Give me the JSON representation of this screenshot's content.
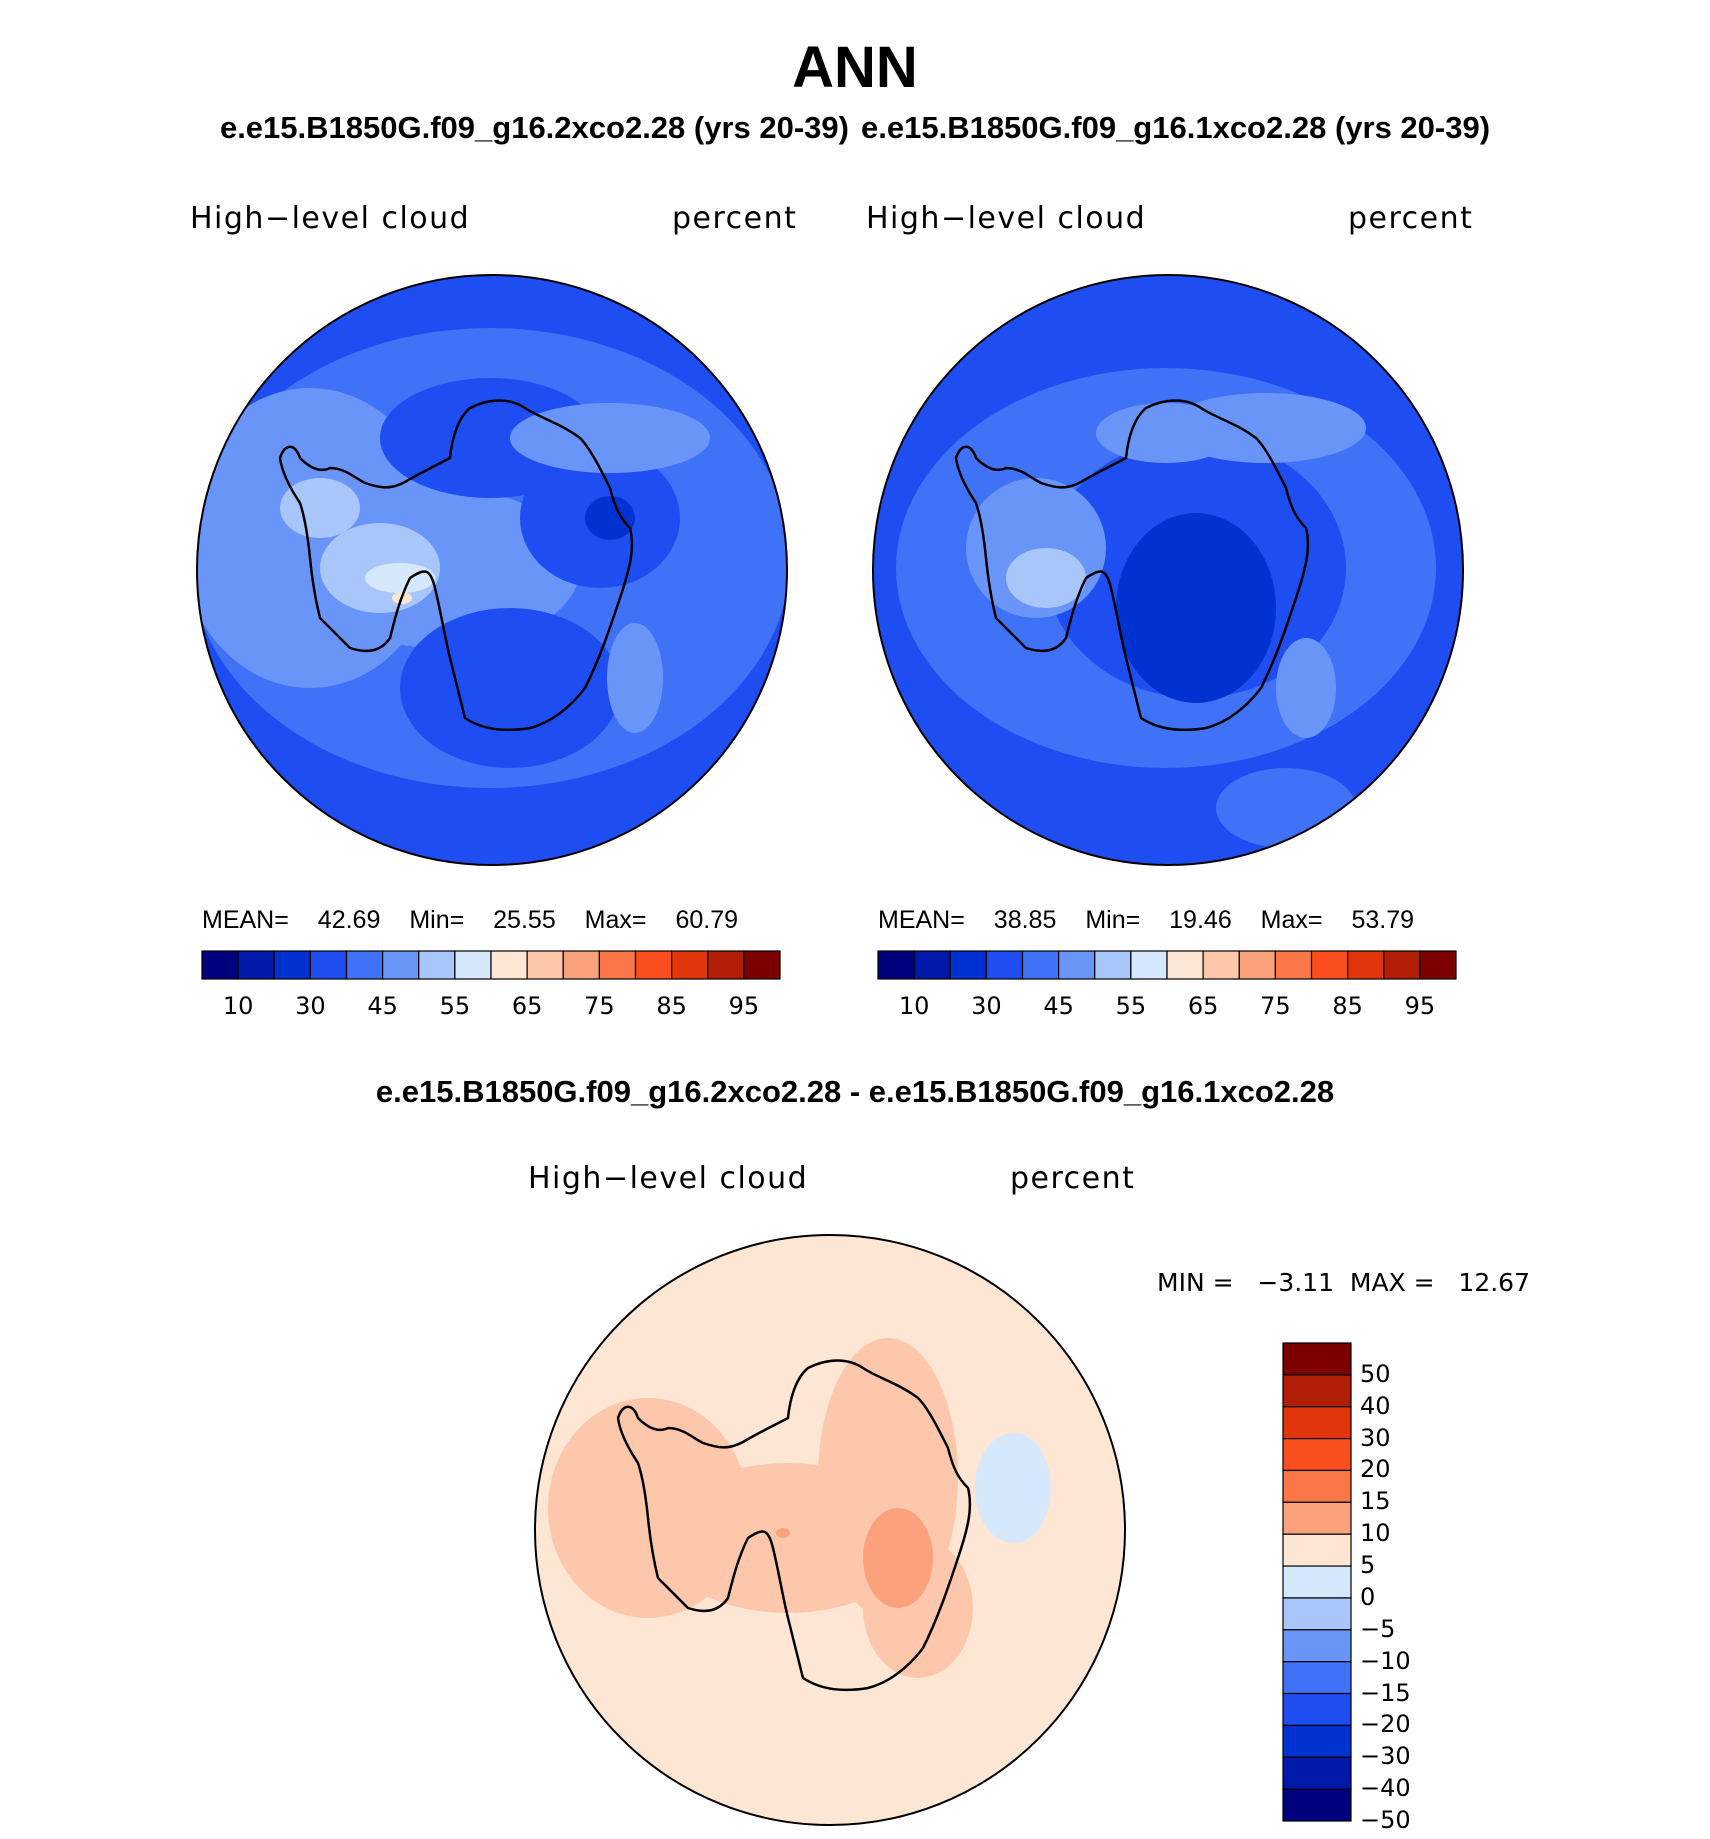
{
  "header": {
    "season": "ANN",
    "case_a": "e.e15.B1850G.f09_g16.2xco2.28 (yrs 20-39)",
    "case_b": "e.e15.B1850G.f09_g16.1xco2.28 (yrs 20-39)",
    "diff_title": "e.e15.B1850G.f09_g16.2xco2.28 - e.e15.B1850G.f09_g16.1xco2.28"
  },
  "panels": [
    {
      "variable": "High−level cloud",
      "units": "percent",
      "stats": {
        "mean_label": "MEAN=",
        "mean": "42.69",
        "min_label": "Min=",
        "min": "25.55",
        "max_label": "Max=",
        "max": "60.79"
      }
    },
    {
      "variable": "High−level cloud",
      "units": "percent",
      "stats": {
        "mean_label": "MEAN=",
        "mean": "38.85",
        "min_label": "Min=",
        "min": "19.46",
        "max_label": "Max=",
        "max": "53.79"
      }
    }
  ],
  "colorbar_main": {
    "colors": [
      "#00007f",
      "#0019a8",
      "#0032d2",
      "#1e4ef2",
      "#3f72f6",
      "#6a95f8",
      "#a9c6fb",
      "#d6e8fc",
      "#fde7d4",
      "#fcc7ab",
      "#fba27c",
      "#fb7748",
      "#fa4e1e",
      "#e1360b",
      "#b01e06",
      "#7c0000"
    ],
    "tick_labels": [
      "10",
      "30",
      "45",
      "55",
      "65",
      "75",
      "85",
      "95"
    ]
  },
  "diff_panel": {
    "variable": "High−level cloud",
    "units": "percent",
    "minmax": "MIN =   −3.11  MAX =   12.67"
  },
  "colorbar_diff": {
    "colors": [
      "#7c0000",
      "#b01e06",
      "#e1360b",
      "#fa4e1e",
      "#fb7748",
      "#fba27c",
      "#fde7d4",
      "#d6e8fc",
      "#a9c6fb",
      "#6a95f8",
      "#3f72f6",
      "#1e4ef2",
      "#0032d2",
      "#0019a8",
      "#00007f"
    ],
    "tick_labels": [
      "50",
      "40",
      "30",
      "20",
      "15",
      "10",
      "5",
      "0",
      "−5",
      "−10",
      "−15",
      "−20",
      "−30",
      "−40",
      "−50"
    ]
  }
}
